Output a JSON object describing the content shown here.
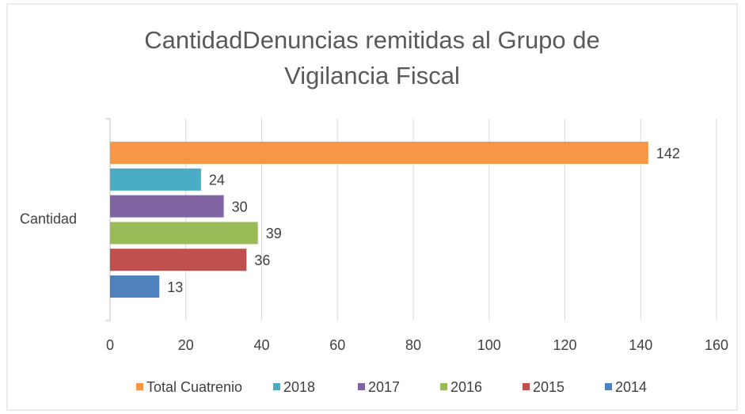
{
  "chart_data": {
    "type": "bar",
    "orientation": "horizontal",
    "title": "CantidadDenuncias remitidas al Grupo de Vigilancia Fiscal",
    "categories": [
      "Cantidad"
    ],
    "series": [
      {
        "name": "Total Cuatrenio",
        "color": "#F79646",
        "values": [
          142
        ]
      },
      {
        "name": "2018",
        "color": "#4BACC6",
        "values": [
          24
        ]
      },
      {
        "name": "2017",
        "color": "#8064A2",
        "values": [
          30
        ]
      },
      {
        "name": "2016",
        "color": "#9BBB59",
        "values": [
          39
        ]
      },
      {
        "name": "2015",
        "color": "#C0504D",
        "values": [
          36
        ]
      },
      {
        "name": "2014",
        "color": "#4F81BD",
        "values": [
          13
        ]
      }
    ],
    "xlim": [
      0,
      160
    ],
    "xticks": [
      0,
      20,
      40,
      60,
      80,
      100,
      120,
      140,
      160
    ],
    "grid": true,
    "legend": "bottom",
    "data_labels": true
  }
}
